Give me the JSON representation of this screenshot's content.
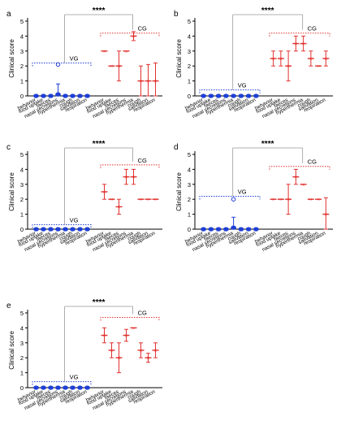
{
  "colors": {
    "vg": "#1f3fd6",
    "cg": "#e0322f",
    "axis": "#000000",
    "bracket": "#999999"
  },
  "chart_data": [
    {
      "panel_label": "a",
      "type": "scatter",
      "ylabel": "Clinical score",
      "ylim": [
        0,
        5
      ],
      "yticks": [
        0,
        1,
        2,
        3,
        4,
        5
      ],
      "significance": "****",
      "categories": [
        "behavior",
        "food uptake",
        "faeces",
        "nasal secretions",
        "hyperthermia",
        "cough",
        "salivation",
        "respiration"
      ],
      "series": [
        {
          "name": "VG",
          "means": [
            0,
            0,
            0,
            0.1,
            0,
            0,
            0,
            0
          ],
          "sd": [
            0,
            0,
            0,
            0.7,
            0,
            0,
            0,
            0
          ],
          "outliers": [
            null,
            null,
            null,
            2.1,
            null,
            null,
            null,
            null
          ],
          "group_max": 2.2
        },
        {
          "name": "CG",
          "means": [
            3,
            2,
            2,
            3,
            4,
            1,
            1,
            1
          ],
          "sd": [
            0,
            0,
            1,
            0,
            0.3,
            1,
            1.1,
            1.2
          ],
          "group_max": 4.2
        }
      ]
    },
    {
      "panel_label": "b",
      "type": "scatter",
      "ylabel": "Clinical score",
      "ylim": [
        0,
        5
      ],
      "yticks": [
        0,
        1,
        2,
        3,
        4,
        5
      ],
      "significance": "****",
      "categories": [
        "behavior",
        "food uptake",
        "faeces",
        "nasal secretions",
        "hyperthermia",
        "cough",
        "salivation",
        "respiration"
      ],
      "series": [
        {
          "name": "VG",
          "means": [
            0,
            0,
            0,
            0,
            0,
            0,
            0,
            0
          ],
          "sd": [
            0,
            0,
            0,
            0,
            0,
            0,
            0,
            0
          ],
          "group_max": 0.4
        },
        {
          "name": "CG",
          "means": [
            2.5,
            2.5,
            2,
            3.5,
            3.5,
            2.5,
            2,
            2.5
          ],
          "sd": [
            0.5,
            0.5,
            1,
            0.5,
            0.5,
            0.5,
            0,
            0.5
          ],
          "group_max": 4.2
        }
      ]
    },
    {
      "panel_label": "c",
      "type": "scatter",
      "ylabel": "Clinical score",
      "ylim": [
        0,
        5
      ],
      "yticks": [
        0,
        1,
        2,
        3,
        4,
        5
      ],
      "significance": "****",
      "categories": [
        "behavior",
        "food uptake",
        "faeces",
        "nasal secretions",
        "hyperthermia",
        "cough",
        "salivation",
        "respiration"
      ],
      "series": [
        {
          "name": "VG",
          "means": [
            0,
            0,
            0,
            0,
            0,
            0,
            0,
            0
          ],
          "sd": [
            0,
            0,
            0,
            0,
            0,
            0,
            0,
            0
          ],
          "group_max": 0.3
        },
        {
          "name": "CG",
          "means": [
            2.5,
            2,
            1.5,
            3.5,
            3.5,
            2,
            2,
            2
          ],
          "sd": [
            0.5,
            0,
            0.5,
            0.5,
            0.5,
            0,
            0,
            0
          ],
          "group_max": 4.3
        }
      ]
    },
    {
      "panel_label": "d",
      "type": "scatter",
      "ylabel": "Clinical score",
      "ylim": [
        0,
        5
      ],
      "yticks": [
        0,
        1,
        2,
        3,
        4,
        5
      ],
      "significance": "****",
      "categories": [
        "behavior",
        "food uptake",
        "faeces",
        "nasal secretions",
        "hyperthermia",
        "cough",
        "salivation",
        "respiration"
      ],
      "series": [
        {
          "name": "VG",
          "means": [
            0,
            0,
            0,
            0,
            0.1,
            0,
            0,
            0
          ],
          "sd": [
            0,
            0,
            0,
            0,
            0.7,
            0,
            0,
            0
          ],
          "outliers": [
            null,
            null,
            null,
            null,
            2,
            null,
            null,
            null
          ],
          "group_max": 2.2
        },
        {
          "name": "CG",
          "means": [
            2,
            2,
            2,
            3.5,
            3,
            2,
            2,
            1
          ],
          "sd": [
            0,
            0,
            1,
            0.5,
            0,
            0,
            0,
            1.1
          ],
          "group_max": 4.2
        }
      ]
    },
    {
      "panel_label": "e",
      "type": "scatter",
      "ylabel": "Clinical score",
      "ylim": [
        0,
        5
      ],
      "yticks": [
        0,
        1,
        2,
        3,
        4,
        5
      ],
      "significance": "****",
      "categories": [
        "behavior",
        "food uptake",
        "faeces",
        "nasal secretions",
        "hyperthermia",
        "cough",
        "salivation",
        "respiration"
      ],
      "series": [
        {
          "name": "VG",
          "means": [
            0,
            0,
            0,
            0,
            0,
            0,
            0,
            0
          ],
          "sd": [
            0,
            0,
            0,
            0,
            0,
            0,
            0,
            0
          ],
          "group_max": 0.4
        },
        {
          "name": "CG",
          "means": [
            3.5,
            2.5,
            2,
            3.5,
            4,
            2.5,
            2,
            2.5
          ],
          "sd": [
            0.5,
            0.5,
            1,
            0.4,
            0,
            0.5,
            0.3,
            0.5
          ],
          "group_max": 4.7
        }
      ]
    }
  ]
}
